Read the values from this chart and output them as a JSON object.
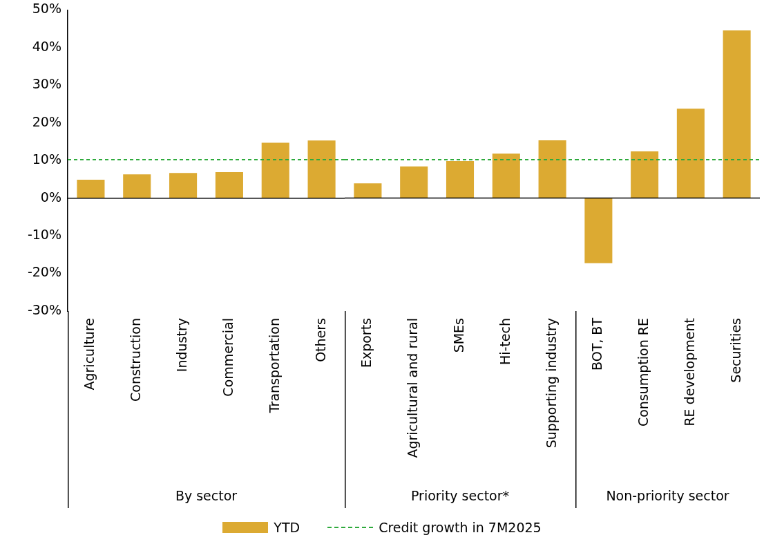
{
  "chart_data": [
    {
      "type": "bar",
      "xlabel": "By sector",
      "categories": [
        "Agriculture",
        "Construction",
        "Industry",
        "Commercial",
        "Transportation",
        "Others"
      ],
      "series": [
        {
          "name": "YTD",
          "color": "#dcaa32",
          "values": [
            4.9,
            6.3,
            6.7,
            6.9,
            14.7,
            15.3
          ]
        }
      ],
      "ylim": [
        -30,
        50
      ],
      "yticks": [
        {
          "value": -30,
          "label": "-30%"
        },
        {
          "value": -20,
          "label": "-20%"
        },
        {
          "value": -10,
          "label": "-10%"
        },
        {
          "value": 0,
          "label": "0%"
        },
        {
          "value": 10,
          "label": "10%"
        },
        {
          "value": 20,
          "label": "20%"
        },
        {
          "value": 30,
          "label": "30%"
        },
        {
          "value": 40,
          "label": "40%"
        },
        {
          "value": 50,
          "label": "50%"
        }
      ],
      "ref_lines": [
        {
          "axis": "y",
          "value": 10.2,
          "label": "Credit growth in 7M2025",
          "color": "#2eaa3c",
          "line_style": "dashed"
        }
      ],
      "grid": false,
      "legend": "bottom"
    },
    {
      "type": "bar",
      "xlabel": "Priority sector*",
      "categories": [
        "Exports",
        "Agricultural and rural",
        "SMEs",
        "Hi-tech",
        "Supporting industry"
      ],
      "series": [
        {
          "color": "#dcaa32",
          "values": [
            3.9,
            8.4,
            9.8,
            11.8,
            15.3
          ]
        }
      ],
      "ylim": [
        -30,
        50
      ],
      "tick_labels": "x",
      "ref_lines": [
        {
          "axis": "y",
          "value": 10.2,
          "color": "#2eaa3c",
          "line_style": "dashed"
        }
      ],
      "grid": false
    },
    {
      "type": "bar",
      "xlabel": "Non-priority sector",
      "categories": [
        "BOT, BT",
        "Consumption RE",
        "RE development",
        "Securities"
      ],
      "series": [
        {
          "color": "#dcaa32",
          "values": [
            -17.3,
            12.4,
            23.7,
            44.5
          ]
        }
      ],
      "ylim": [
        -30,
        50
      ],
      "tick_labels": "x",
      "ref_lines": [
        {
          "axis": "y",
          "value": 10.2,
          "color": "#2eaa3c",
          "line_style": "dashed"
        }
      ],
      "grid": false
    }
  ]
}
